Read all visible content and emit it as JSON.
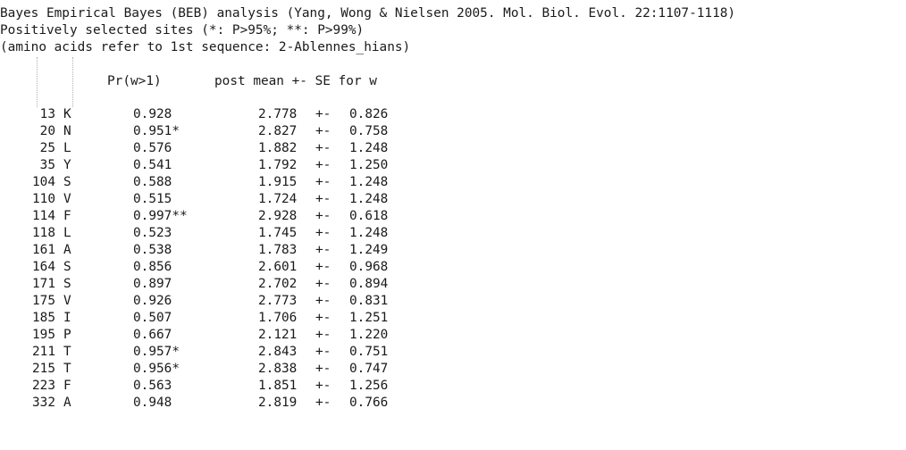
{
  "header": {
    "line1": "Bayes Empirical Bayes (BEB) analysis (Yang, Wong & Nielsen 2005. Mol. Biol. Evol. 22:1107-1118)",
    "line2": "Positively selected sites (*: P>95%; **: P>99%)",
    "line3": "(amino acids refer to 1st sequence: 2-Ablennes_hians)"
  },
  "columns": {
    "pr": "Pr(w>1)",
    "post": "post mean +- SE for w"
  },
  "rows": [
    {
      "pos": "13",
      "aa": "K",
      "pr": "0.928",
      "mean": "2.778",
      "pm": "+-",
      "se": "0.826"
    },
    {
      "pos": "20",
      "aa": "N",
      "pr": "0.951*",
      "mean": "2.827",
      "pm": "+-",
      "se": "0.758"
    },
    {
      "pos": "25",
      "aa": "L",
      "pr": "0.576",
      "mean": "1.882",
      "pm": "+-",
      "se": "1.248"
    },
    {
      "pos": "35",
      "aa": "Y",
      "pr": "0.541",
      "mean": "1.792",
      "pm": "+-",
      "se": "1.250"
    },
    {
      "pos": "104",
      "aa": "S",
      "pr": "0.588",
      "mean": "1.915",
      "pm": "+-",
      "se": "1.248"
    },
    {
      "pos": "110",
      "aa": "V",
      "pr": "0.515",
      "mean": "1.724",
      "pm": "+-",
      "se": "1.248"
    },
    {
      "pos": "114",
      "aa": "F",
      "pr": "0.997**",
      "mean": "2.928",
      "pm": "+-",
      "se": "0.618"
    },
    {
      "pos": "118",
      "aa": "L",
      "pr": "0.523",
      "mean": "1.745",
      "pm": "+-",
      "se": "1.248"
    },
    {
      "pos": "161",
      "aa": "A",
      "pr": "0.538",
      "mean": "1.783",
      "pm": "+-",
      "se": "1.249"
    },
    {
      "pos": "164",
      "aa": "S",
      "pr": "0.856",
      "mean": "2.601",
      "pm": "+-",
      "se": "0.968"
    },
    {
      "pos": "171",
      "aa": "S",
      "pr": "0.897",
      "mean": "2.702",
      "pm": "+-",
      "se": "0.894"
    },
    {
      "pos": "175",
      "aa": "V",
      "pr": "0.926",
      "mean": "2.773",
      "pm": "+-",
      "se": "0.831"
    },
    {
      "pos": "185",
      "aa": "I",
      "pr": "0.507",
      "mean": "1.706",
      "pm": "+-",
      "se": "1.251"
    },
    {
      "pos": "195",
      "aa": "P",
      "pr": "0.667",
      "mean": "2.121",
      "pm": "+-",
      "se": "1.220"
    },
    {
      "pos": "211",
      "aa": "T",
      "pr": "0.957*",
      "mean": "2.843",
      "pm": "+-",
      "se": "0.751"
    },
    {
      "pos": "215",
      "aa": "T",
      "pr": "0.956*",
      "mean": "2.838",
      "pm": "+-",
      "se": "0.747"
    },
    {
      "pos": "223",
      "aa": "F",
      "pr": "0.563",
      "mean": "1.851",
      "pm": "+-",
      "se": "1.256"
    },
    {
      "pos": "332",
      "aa": "A",
      "pr": "0.948",
      "mean": "2.819",
      "pm": "+-",
      "se": "0.766"
    }
  ]
}
